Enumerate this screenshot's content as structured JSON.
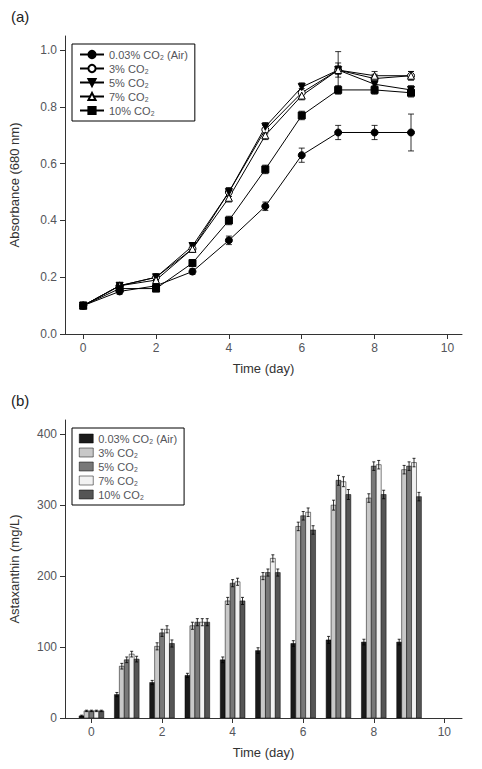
{
  "chart_data": [
    {
      "type": "line",
      "title": "(a)",
      "xlabel": "Time (day)",
      "ylabel": "Absorbance (680 nm)",
      "x": [
        0,
        1,
        2,
        3,
        4,
        5,
        6,
        7,
        8,
        9
      ],
      "series": [
        {
          "name": "0.03% CO₂ (Air)",
          "color": "#000000",
          "marker": "circle",
          "values": [
            0.1,
            0.15,
            0.17,
            0.22,
            0.33,
            0.45,
            0.63,
            0.71,
            0.71,
            0.71
          ],
          "yerr": [
            0.005,
            0.01,
            0.01,
            0.01,
            0.015,
            0.015,
            0.025,
            0.025,
            0.025,
            0.065
          ]
        },
        {
          "name": "3% CO₂",
          "color": "#000000",
          "marker": "circle-open",
          "values": [
            0.1,
            0.17,
            0.2,
            0.3,
            0.5,
            0.72,
            0.85,
            0.93,
            0.9,
            0.91
          ],
          "yerr": [
            0.005,
            0.01,
            0.01,
            0.01,
            0.015,
            0.015,
            0.015,
            0.015,
            0.015,
            0.015
          ]
        },
        {
          "name": "5% CO₂",
          "color": "#000000",
          "marker": "triangle-down",
          "values": [
            0.1,
            0.17,
            0.2,
            0.31,
            0.5,
            0.73,
            0.87,
            0.93,
            0.88,
            0.86
          ],
          "yerr": [
            0.005,
            0.01,
            0.01,
            0.01,
            0.015,
            0.015,
            0.015,
            0.025,
            0.015,
            0.015
          ]
        },
        {
          "name": "7% CO₂",
          "color": "#000000",
          "marker": "triangle-up-open",
          "values": [
            0.1,
            0.17,
            0.19,
            0.3,
            0.48,
            0.7,
            0.84,
            0.93,
            0.91,
            0.91
          ],
          "yerr": [
            0.005,
            0.01,
            0.01,
            0.01,
            0.015,
            0.015,
            0.015,
            0.065,
            0.015,
            0.015
          ]
        },
        {
          "name": "10% CO₂",
          "color": "#000000",
          "marker": "square",
          "values": [
            0.1,
            0.16,
            0.16,
            0.25,
            0.4,
            0.58,
            0.77,
            0.86,
            0.86,
            0.85
          ],
          "yerr": [
            0.005,
            0.01,
            0.01,
            0.01,
            0.015,
            0.015,
            0.015,
            0.015,
            0.015,
            0.015
          ]
        }
      ],
      "xlim": [
        -0.5,
        10.4
      ],
      "xticks": [
        0,
        2,
        4,
        6,
        8,
        10
      ],
      "ylim": [
        0.0,
        1.05
      ],
      "yticks": [
        {
          "value": 0,
          "label": "0.0"
        },
        0.2,
        0.4,
        0.6,
        0.8,
        {
          "value": 1,
          "label": "1.0"
        }
      ],
      "grid": false,
      "legend": "upper left"
    },
    {
      "type": "bar",
      "title": "(b)",
      "xlabel": "Time (day)",
      "ylabel": "Astaxanthin (mg/L)",
      "x": [
        0,
        1,
        2,
        3,
        4,
        5,
        6,
        7,
        8,
        9
      ],
      "series": [
        {
          "name": "0.03% CO₂ (Air)",
          "color": "#1a1a1a",
          "values": [
            3,
            33,
            50,
            60,
            82,
            95,
            105,
            110,
            107,
            107
          ],
          "yerr": [
            1,
            3,
            3,
            3,
            4,
            4,
            4,
            5,
            4,
            4
          ]
        },
        {
          "name": "3% CO₂",
          "color": "#c8c8c8",
          "values": [
            10,
            73,
            101,
            130,
            165,
            200,
            270,
            300,
            310,
            350
          ],
          "yerr": [
            1,
            4,
            5,
            5,
            5,
            5,
            6,
            7,
            6,
            6
          ]
        },
        {
          "name": "5% CO₂",
          "color": "#787878",
          "values": [
            10,
            82,
            120,
            135,
            190,
            205,
            285,
            335,
            355,
            355
          ],
          "yerr": [
            1,
            4,
            5,
            5,
            5,
            5,
            6,
            7,
            6,
            6
          ]
        },
        {
          "name": "7% CO₂",
          "color": "#f2f2f2",
          "values": [
            10,
            90,
            125,
            135,
            192,
            225,
            290,
            333,
            357,
            360
          ],
          "yerr": [
            1,
            4,
            5,
            5,
            5,
            5,
            6,
            7,
            6,
            6
          ]
        },
        {
          "name": "10% CO₂",
          "color": "#555555",
          "values": [
            10,
            83,
            105,
            135,
            165,
            205,
            265,
            315,
            315,
            312
          ],
          "yerr": [
            1,
            4,
            5,
            5,
            5,
            5,
            6,
            7,
            6,
            6
          ]
        }
      ],
      "xlim": [
        -0.75,
        10.5
      ],
      "xticks": [
        0,
        2,
        4,
        6,
        8,
        10
      ],
      "ylim": [
        0,
        420
      ],
      "yticks": [
        0,
        100,
        200,
        300,
        400
      ],
      "grid": false,
      "legend": "upper left"
    }
  ]
}
